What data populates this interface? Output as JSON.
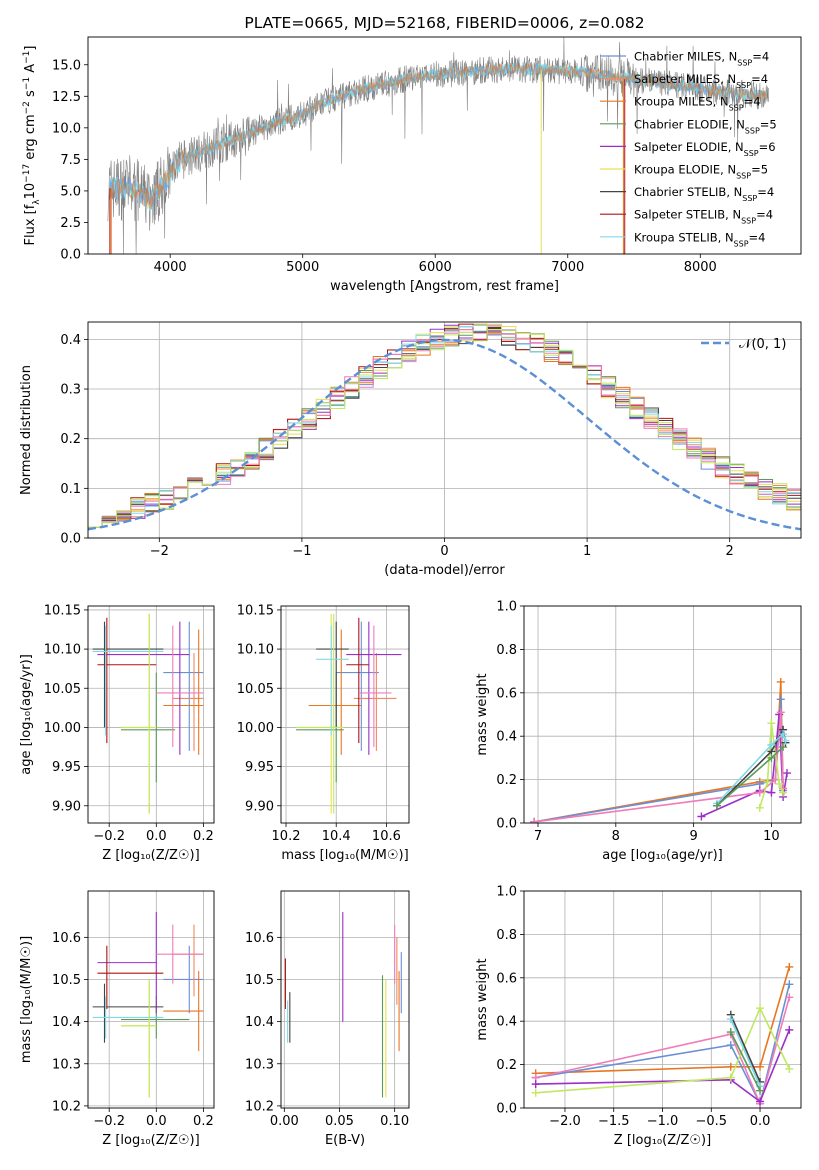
{
  "colors": {
    "Chabrier MILES": "#6a8fd6",
    "Salpeter MILES": "#f08860",
    "Kroupa MILES": "#e8761f",
    "Chabrier ELODIE": "#5a9a5a",
    "Salpeter ELODIE": "#9b30c8",
    "Kroupa ELODIE": "#e8e050",
    "Chabrier STELIB": "#444444",
    "Salpeter STELIB": "#b01414",
    "Kroupa STELIB": "#80d8e8",
    "pink": "#f07cb8",
    "lime": "#c0e860",
    "gray_spectrum": "#808080",
    "gauss": "#5b8fd6"
  },
  "chart_data": [
    {
      "id": "spectrum",
      "type": "line",
      "title": "PLATE=0665, MJD=52168, FIBERID=0006, z=0.082",
      "xlabel": "wavelength [Angstrom, rest frame]",
      "ylabel": "Flux [f",
      "ylabel_parts": [
        "λ",
        "10",
        "−17",
        " erg cm",
        "−2",
        " s",
        "−1",
        " A",
        "−1",
        "]"
      ],
      "xlim": [
        3380,
        8760
      ],
      "ylim": [
        0,
        17.2
      ],
      "xticks": [
        4000,
        5000,
        6000,
        7000,
        8000
      ],
      "yticks": [
        0.0,
        2.5,
        5.0,
        7.5,
        10.0,
        12.5,
        15.0
      ],
      "ytick_labels": [
        "0.0",
        "2.5",
        "5.0",
        "7.5",
        "10.0",
        "12.5",
        "15.0"
      ],
      "legend_loc": "right",
      "legend": [
        {
          "name": "Chabrier MILES",
          "n": "4"
        },
        {
          "name": "Salpeter MILES",
          "n": "4"
        },
        {
          "name": "Kroupa MILES",
          "n": "4"
        },
        {
          "name": "Chabrier ELODIE",
          "n": "5"
        },
        {
          "name": "Salpeter ELODIE",
          "n": "6"
        },
        {
          "name": "Kroupa ELODIE",
          "n": "5"
        },
        {
          "name": "Chabrier STELIB",
          "n": "4"
        },
        {
          "name": "Salpeter STELIB",
          "n": "4"
        },
        {
          "name": "Kroupa STELIB",
          "n": "4"
        }
      ],
      "legend_n_label": "N",
      "legend_n_sub": "SSP",
      "continuum": [
        [
          3530,
          5.2
        ],
        [
          3700,
          5.3
        ],
        [
          3850,
          4.3
        ],
        [
          3950,
          5.5
        ],
        [
          4050,
          7.2
        ],
        [
          4200,
          8.0
        ],
        [
          4400,
          8.8
        ],
        [
          4600,
          9.5
        ],
        [
          4800,
          10.4
        ],
        [
          5000,
          11.1
        ],
        [
          5200,
          12.2
        ],
        [
          5400,
          12.9
        ],
        [
          5600,
          13.4
        ],
        [
          5800,
          13.9
        ],
        [
          6000,
          14.2
        ],
        [
          6200,
          14.4
        ],
        [
          6400,
          14.6
        ],
        [
          6600,
          14.7
        ],
        [
          6800,
          14.6
        ],
        [
          7000,
          14.5
        ],
        [
          7200,
          14.3
        ],
        [
          7400,
          14.0
        ],
        [
          7600,
          13.7
        ],
        [
          7800,
          13.4
        ],
        [
          8000,
          13.1
        ],
        [
          8200,
          12.8
        ],
        [
          8400,
          12.6
        ],
        [
          8520,
          12.5
        ]
      ]
    },
    {
      "id": "residuals",
      "type": "histogram",
      "xlabel": "(data-model)/error",
      "ylabel": "Normed distribution",
      "xlim": [
        -2.5,
        2.5
      ],
      "ylim": [
        0,
        0.435
      ],
      "xticks": [
        -2,
        -1,
        0,
        1,
        2
      ],
      "xtick_labels": [
        "−2",
        "−1",
        "0",
        "1",
        "2"
      ],
      "yticks": [
        0.0,
        0.1,
        0.2,
        0.3,
        0.4
      ],
      "ytick_labels": [
        "0.0",
        "0.1",
        "0.2",
        "0.3",
        "0.4"
      ],
      "grid": true,
      "bin_width": 0.1,
      "legend": "𝒩(0, 1)",
      "legend_loc": "top-right"
    },
    {
      "id": "age_vs_z",
      "type": "errorbar",
      "xlabel": "Z [log₁₀(Z/Z☉)]",
      "ylabel": "age  [log₁₀(age/yr)]",
      "xlim": [
        -0.29,
        0.245
      ],
      "ylim": [
        9.878,
        10.155
      ],
      "xticks": [
        -0.2,
        0.0,
        0.2
      ],
      "xtick_labels": [
        "−0.2",
        "0.0",
        "0.2"
      ],
      "yticks": [
        9.9,
        9.95,
        10.0,
        10.05,
        10.1,
        10.15
      ],
      "ytick_labels": [
        "9.90",
        "9.95",
        "10.00",
        "10.05",
        "10.10",
        "10.15"
      ],
      "grid": true,
      "points": [
        {
          "c": "Chabrier MILES",
          "x": 0.14,
          "y": 10.07,
          "xlo": 0.03,
          "xhi": 0.2,
          "ylo": 9.97,
          "yhi": 10.135
        },
        {
          "c": "Salpeter MILES",
          "x": 0.16,
          "y": 10.037,
          "xlo": 0.07,
          "xhi": 0.2,
          "ylo": 9.97,
          "yhi": 10.095
        },
        {
          "c": "Kroupa MILES",
          "x": 0.18,
          "y": 10.028,
          "xlo": 0.03,
          "xhi": 0.2,
          "ylo": 9.965,
          "yhi": 10.125
        },
        {
          "c": "Chabrier ELODIE",
          "x": 0.0,
          "y": 9.997,
          "xlo": -0.15,
          "xhi": 0.08,
          "ylo": 9.93,
          "yhi": 10.07
        },
        {
          "c": "Salpeter ELODIE",
          "x": 0.1,
          "y": 10.093,
          "xlo": -0.25,
          "xhi": 0.14,
          "ylo": 9.965,
          "yhi": 10.135
        },
        {
          "c": "Kroupa ELODIE",
          "x": -0.03,
          "y": 10.0,
          "xlo": -0.15,
          "xhi": 0.0,
          "ylo": 9.89,
          "yhi": 10.145
        },
        {
          "c": "Chabrier STELIB",
          "x": -0.22,
          "y": 10.1,
          "xlo": -0.27,
          "xhi": 0.03,
          "ylo": 10.0,
          "yhi": 10.135
        },
        {
          "c": "Salpeter STELIB",
          "x": -0.21,
          "y": 10.08,
          "xlo": -0.25,
          "xhi": 0.0,
          "ylo": 9.98,
          "yhi": 10.14
        },
        {
          "c": "Kroupa STELIB",
          "x": -0.215,
          "y": 10.097,
          "xlo": -0.27,
          "xhi": 0.03,
          "ylo": 9.99,
          "yhi": 10.13
        },
        {
          "c": "pink",
          "x": 0.07,
          "y": 10.044,
          "xlo": 0.0,
          "xhi": 0.2,
          "ylo": 9.975,
          "yhi": 10.13
        },
        {
          "c": "lime",
          "x": -0.03,
          "y": 10.0,
          "xlo": -0.15,
          "xhi": -0.02,
          "ylo": 9.89,
          "yhi": 10.145
        }
      ]
    },
    {
      "id": "age_vs_mass",
      "type": "errorbar",
      "xlabel": "mass [log₁₀(M/M☉)]",
      "ylabel": "",
      "xlim": [
        10.18,
        10.69
      ],
      "ylim": [
        9.878,
        10.155
      ],
      "xticks": [
        10.2,
        10.4,
        10.6
      ],
      "xtick_labels": [
        "10.2",
        "10.4",
        "10.6"
      ],
      "yticks": [
        9.9,
        9.95,
        10.0,
        10.05,
        10.1,
        10.15
      ],
      "ytick_labels": [
        "9.90",
        "9.95",
        "10.00",
        "10.05",
        "10.10",
        "10.15"
      ],
      "grid": true,
      "points": [
        {
          "c": "Chabrier MILES",
          "x": 10.5,
          "y": 10.07,
          "xlo": 10.4,
          "xhi": 10.57,
          "ylo": 9.97,
          "yhi": 10.135
        },
        {
          "c": "Salpeter MILES",
          "x": 10.56,
          "y": 10.037,
          "xlo": 10.47,
          "xhi": 10.64,
          "ylo": 9.97,
          "yhi": 10.095
        },
        {
          "c": "Kroupa MILES",
          "x": 10.42,
          "y": 10.028,
          "xlo": 10.29,
          "xhi": 10.5,
          "ylo": 9.965,
          "yhi": 10.125
        },
        {
          "c": "Chabrier ELODIE",
          "x": 10.4,
          "y": 9.997,
          "xlo": 10.24,
          "xhi": 10.43,
          "ylo": 9.93,
          "yhi": 10.07
        },
        {
          "c": "Salpeter ELODIE",
          "x": 10.53,
          "y": 10.093,
          "xlo": 10.44,
          "xhi": 10.66,
          "ylo": 9.965,
          "yhi": 10.135
        },
        {
          "c": "Kroupa ELODIE",
          "x": 10.38,
          "y": 10.0,
          "xlo": 10.24,
          "xhi": 10.43,
          "ylo": 9.89,
          "yhi": 10.145
        },
        {
          "c": "Chabrier STELIB",
          "x": 10.4,
          "y": 10.1,
          "xlo": 10.32,
          "xhi": 10.45,
          "ylo": 10.0,
          "yhi": 10.135
        },
        {
          "c": "Salpeter STELIB",
          "x": 10.49,
          "y": 10.08,
          "xlo": 10.44,
          "xhi": 10.53,
          "ylo": 9.98,
          "yhi": 10.14
        },
        {
          "c": "Kroupa STELIB",
          "x": 10.38,
          "y": 10.087,
          "xlo": 10.32,
          "xhi": 10.45,
          "ylo": 9.99,
          "yhi": 10.13
        },
        {
          "c": "pink",
          "x": 10.55,
          "y": 10.044,
          "xlo": 10.49,
          "xhi": 10.62,
          "ylo": 9.975,
          "yhi": 10.13
        },
        {
          "c": "lime",
          "x": 10.39,
          "y": 10.0,
          "xlo": 10.24,
          "xhi": 10.43,
          "ylo": 9.89,
          "yhi": 10.145
        }
      ]
    },
    {
      "id": "weight_vs_age",
      "type": "line",
      "xlabel": "age  [log₁₀(age/yr)]",
      "ylabel": "mass weight",
      "xlim": [
        6.82,
        10.38
      ],
      "ylim": [
        0,
        1
      ],
      "xticks": [
        7,
        8,
        9,
        10
      ],
      "xtick_labels": [
        "7",
        "8",
        "9",
        "10"
      ],
      "yticks": [
        0.0,
        0.2,
        0.4,
        0.6,
        0.8,
        1.0
      ],
      "ytick_labels": [
        "0.0",
        "0.2",
        "0.4",
        "0.6",
        "0.8",
        "1.0"
      ],
      "grid": true,
      "series": [
        {
          "c": "Kroupa MILES",
          "x": [
            6.95,
            9.85,
            10.05,
            10.12,
            10.15
          ],
          "y": [
            0.005,
            0.19,
            0.2,
            0.65,
            0.15
          ]
        },
        {
          "c": "Chabrier MILES",
          "x": [
            6.95,
            9.85,
            10.05,
            10.12,
            10.15
          ],
          "y": [
            0.005,
            0.18,
            0.2,
            0.57,
            0.15
          ]
        },
        {
          "c": "Salpeter ELODIE",
          "x": [
            9.1,
            9.85,
            10.0,
            10.1,
            10.15,
            10.2
          ],
          "y": [
            0.03,
            0.15,
            0.14,
            0.5,
            0.12,
            0.23
          ]
        },
        {
          "c": "pink",
          "x": [
            6.95,
            9.85,
            10.05,
            10.12,
            10.15
          ],
          "y": [
            0.005,
            0.14,
            0.2,
            0.51,
            0.16
          ]
        },
        {
          "c": "lime",
          "x": [
            9.85,
            9.95,
            10.0,
            10.1,
            10.15
          ],
          "y": [
            0.07,
            0.19,
            0.46,
            0.18,
            0.14
          ]
        },
        {
          "c": "Chabrier STELIB",
          "x": [
            9.3,
            10.0,
            10.15,
            10.18
          ],
          "y": [
            0.08,
            0.33,
            0.43,
            0.37
          ]
        },
        {
          "c": "Kroupa STELIB",
          "x": [
            9.3,
            10.0,
            10.15,
            10.18
          ],
          "y": [
            0.09,
            0.36,
            0.41,
            0.38
          ]
        },
        {
          "c": "Chabrier ELODIE",
          "x": [
            9.3,
            10.0,
            10.15
          ],
          "y": [
            0.08,
            0.3,
            0.35
          ]
        }
      ]
    },
    {
      "id": "mass_vs_z",
      "type": "errorbar",
      "xlabel": "Z [log₁₀(Z/Z☉)]",
      "ylabel": "mass [log₁₀(M/M☉)]",
      "xlim": [
        -0.29,
        0.245
      ],
      "ylim": [
        10.195,
        10.71
      ],
      "xticks": [
        -0.2,
        0.0,
        0.2
      ],
      "xtick_labels": [
        "−0.2",
        "0.0",
        "0.2"
      ],
      "yticks": [
        10.2,
        10.3,
        10.4,
        10.5,
        10.6
      ],
      "ytick_labels": [
        "10.2",
        "10.3",
        "10.4",
        "10.5",
        "10.6"
      ],
      "grid": true,
      "points": [
        {
          "c": "Chabrier MILES",
          "x": 0.14,
          "y": 10.5,
          "xlo": 0.03,
          "xhi": 0.2,
          "ylo": 10.42,
          "yhi": 10.58
        },
        {
          "c": "Salpeter MILES",
          "x": 0.16,
          "y": 10.56,
          "xlo": 0.07,
          "xhi": 0.2,
          "ylo": 10.46,
          "yhi": 10.63
        },
        {
          "c": "Kroupa MILES",
          "x": 0.18,
          "y": 10.425,
          "xlo": 0.03,
          "xhi": 0.2,
          "ylo": 10.33,
          "yhi": 10.52
        },
        {
          "c": "Chabrier ELODIE",
          "x": 0.0,
          "y": 10.405,
          "xlo": -0.15,
          "xhi": 0.14,
          "ylo": 10.36,
          "yhi": 10.46
        },
        {
          "c": "Salpeter ELODIE",
          "x": 0.0,
          "y": 10.54,
          "xlo": -0.25,
          "xhi": 0.0,
          "ylo": 10.42,
          "yhi": 10.66
        },
        {
          "c": "Kroupa ELODIE",
          "x": -0.03,
          "y": 10.39,
          "xlo": -0.15,
          "xhi": 0.0,
          "ylo": 10.22,
          "yhi": 10.5
        },
        {
          "c": "Chabrier STELIB",
          "x": -0.22,
          "y": 10.435,
          "xlo": -0.27,
          "xhi": 0.03,
          "ylo": 10.35,
          "yhi": 10.49
        },
        {
          "c": "Salpeter STELIB",
          "x": -0.21,
          "y": 10.515,
          "xlo": -0.25,
          "xhi": 0.03,
          "ylo": 10.43,
          "yhi": 10.58
        },
        {
          "c": "Kroupa STELIB",
          "x": -0.215,
          "y": 10.41,
          "xlo": -0.27,
          "xhi": 0.03,
          "ylo": 10.36,
          "yhi": 10.46
        },
        {
          "c": "pink",
          "x": 0.07,
          "y": 10.56,
          "xlo": 0.0,
          "xhi": 0.2,
          "ylo": 10.49,
          "yhi": 10.63
        },
        {
          "c": "lime",
          "x": -0.03,
          "y": 10.39,
          "xlo": -0.15,
          "xhi": 0.0,
          "ylo": 10.22,
          "yhi": 10.5
        }
      ]
    },
    {
      "id": "mass_vs_ebv",
      "type": "errorbar",
      "xlabel": "E(B-V)",
      "ylabel": "",
      "xlim": [
        -0.003,
        0.113
      ],
      "ylim": [
        10.195,
        10.71
      ],
      "xticks": [
        0.0,
        0.05,
        0.1
      ],
      "xtick_labels": [
        "0.00",
        "0.05",
        "0.10"
      ],
      "yticks": [
        10.2,
        10.3,
        10.4,
        10.5,
        10.6
      ],
      "ytick_labels": [
        "10.2",
        "10.3",
        "10.4",
        "10.5",
        "10.6"
      ],
      "grid": true,
      "points": [
        {
          "c": "Chabrier MILES",
          "x": 0.106,
          "y": 10.5,
          "ylo": 10.42,
          "yhi": 10.565
        },
        {
          "c": "Salpeter MILES",
          "x": 0.102,
          "y": 10.52,
          "ylo": 10.44,
          "yhi": 10.6
        },
        {
          "c": "Kroupa MILES",
          "x": 0.104,
          "y": 10.425,
          "ylo": 10.33,
          "yhi": 10.52
        },
        {
          "c": "Chabrier ELODIE",
          "x": 0.089,
          "y": 10.4,
          "ylo": 10.22,
          "yhi": 10.51
        },
        {
          "c": "Salpeter ELODIE",
          "x": 0.053,
          "y": 10.54,
          "ylo": 10.4,
          "yhi": 10.66
        },
        {
          "c": "Kroupa ELODIE",
          "x": 0.092,
          "y": 10.39,
          "ylo": 10.22,
          "yhi": 10.5
        },
        {
          "c": "Chabrier STELIB",
          "x": 0.005,
          "y": 10.4,
          "ylo": 10.35,
          "yhi": 10.47
        },
        {
          "c": "Salpeter STELIB",
          "x": 0.001,
          "y": 10.5,
          "ylo": 10.43,
          "yhi": 10.55
        },
        {
          "c": "Kroupa STELIB",
          "x": 0.003,
          "y": 10.41,
          "ylo": 10.35,
          "yhi": 10.45
        },
        {
          "c": "pink",
          "x": 0.1,
          "y": 10.56,
          "ylo": 10.49,
          "yhi": 10.63
        }
      ]
    },
    {
      "id": "weight_vs_z",
      "type": "line",
      "xlabel": "Z [log₁₀(Z/Z☉)]",
      "ylabel": "mass weight",
      "xlim": [
        -2.42,
        0.42
      ],
      "ylim": [
        0,
        1
      ],
      "xticks": [
        -2.0,
        -1.5,
        -1.0,
        -0.5,
        0.0
      ],
      "xtick_labels": [
        "−2.0",
        "−1.5",
        "−1.0",
        "−0.5",
        "0.0"
      ],
      "yticks": [
        0.0,
        0.2,
        0.4,
        0.6,
        0.8,
        1.0
      ],
      "ytick_labels": [
        "0.0",
        "0.2",
        "0.4",
        "0.6",
        "0.8",
        "1.0"
      ],
      "grid": true,
      "series": [
        {
          "c": "Kroupa MILES",
          "x": [
            -2.3,
            -0.3,
            0.0,
            0.3
          ],
          "y": [
            0.16,
            0.19,
            0.19,
            0.65
          ]
        },
        {
          "c": "Chabrier MILES",
          "x": [
            -2.3,
            -0.3,
            0.0,
            0.3
          ],
          "y": [
            0.14,
            0.29,
            0.02,
            0.57
          ]
        },
        {
          "c": "pink",
          "x": [
            -2.3,
            -0.3,
            0.0,
            0.3
          ],
          "y": [
            0.14,
            0.34,
            0.02,
            0.51
          ]
        },
        {
          "c": "Salpeter ELODIE",
          "x": [
            -2.3,
            -0.3,
            0.0,
            0.3
          ],
          "y": [
            0.11,
            0.13,
            0.03,
            0.36
          ]
        },
        {
          "c": "lime",
          "x": [
            -2.3,
            -0.3,
            0.0,
            0.3
          ],
          "y": [
            0.07,
            0.14,
            0.46,
            0.18
          ]
        },
        {
          "c": "Chabrier STELIB",
          "x": [
            -0.3,
            0.0
          ],
          "y": [
            0.43,
            0.12
          ]
        },
        {
          "c": "Kroupa STELIB",
          "x": [
            -0.3,
            0.0
          ],
          "y": [
            0.41,
            0.1
          ]
        },
        {
          "c": "Chabrier ELODIE",
          "x": [
            -0.3,
            0.0
          ],
          "y": [
            0.35,
            0.08
          ]
        }
      ]
    }
  ]
}
